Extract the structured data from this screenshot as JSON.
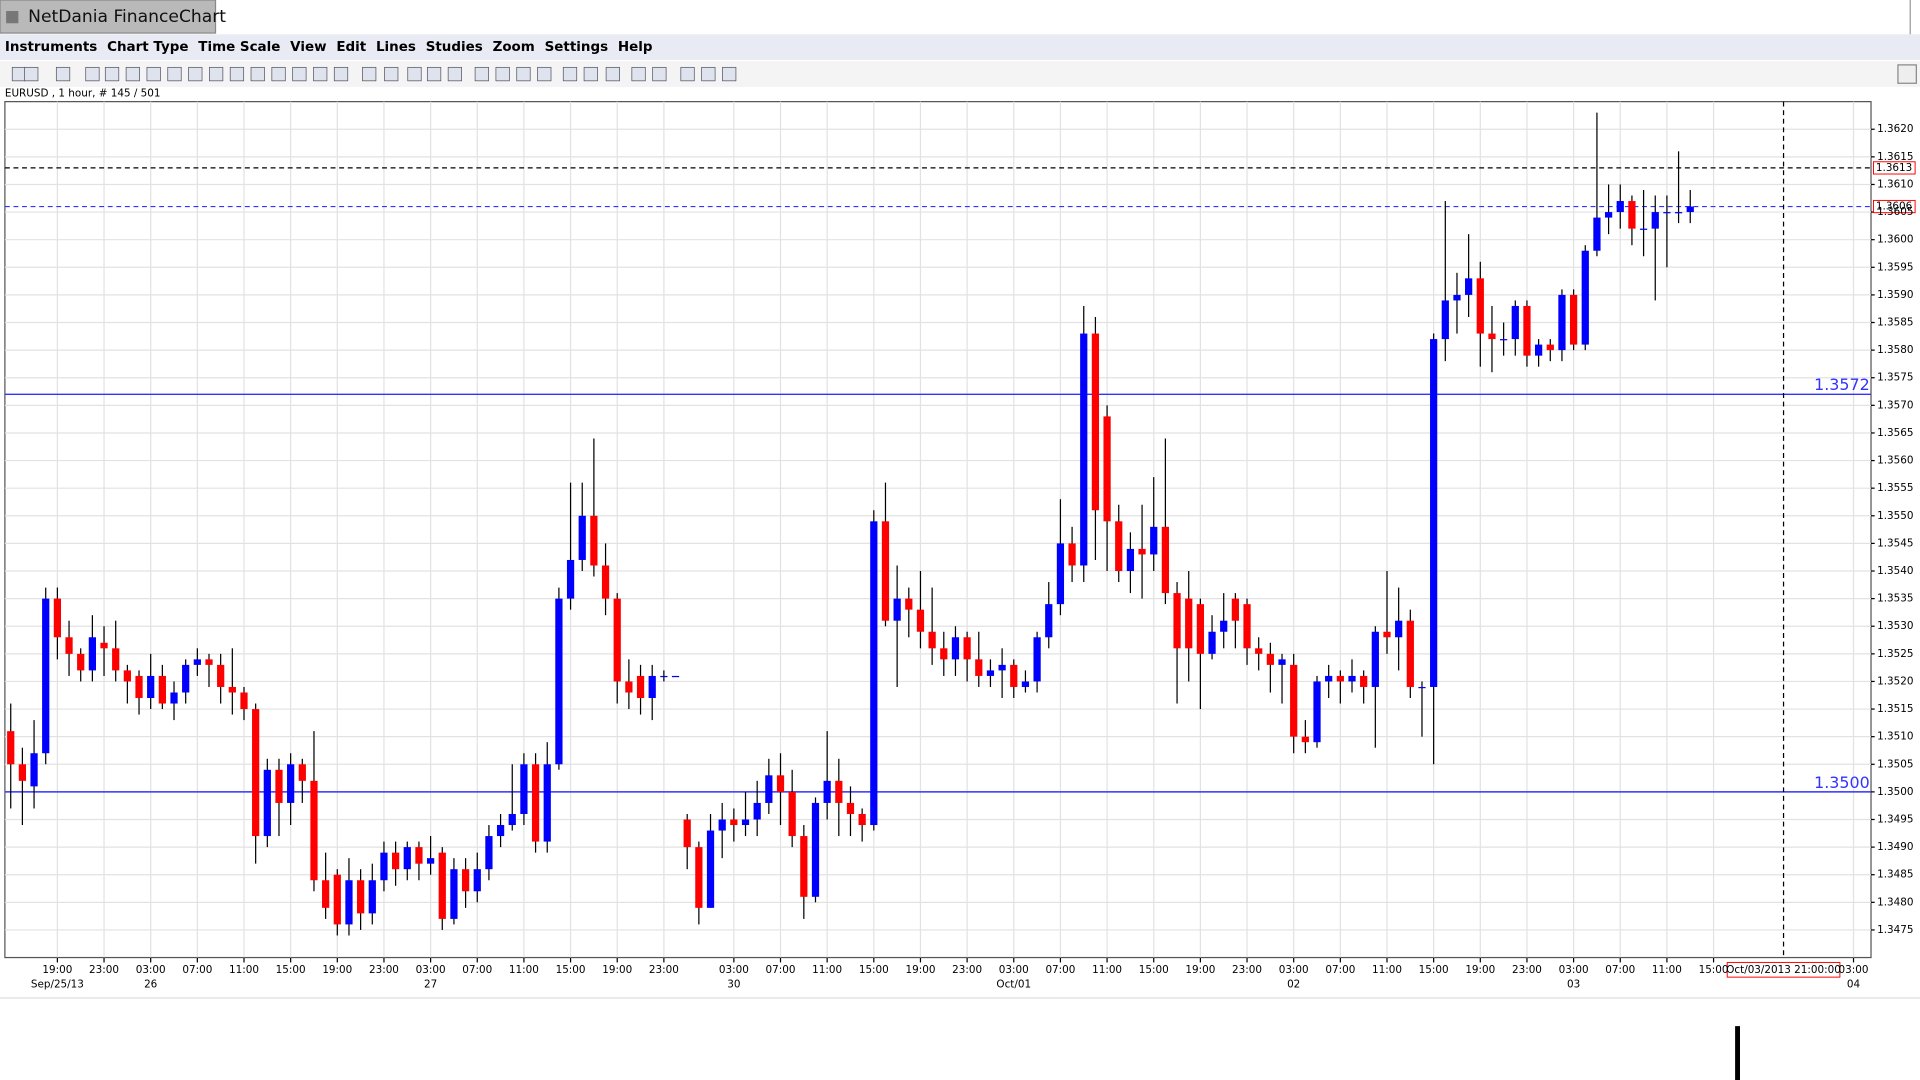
{
  "window_title": "NetDania FinanceChart",
  "menu": [
    "Instruments",
    "Chart Type",
    "Time Scale",
    "View",
    "Edit",
    "Lines",
    "Studies",
    "Zoom",
    "Settings",
    "Help"
  ],
  "chart_info": "EURUSD , 1 hour, # 145 / 501",
  "chart_data": {
    "type": "candlestick",
    "up_color": "#0000ff",
    "down_color": "#ff0000",
    "wick_color": "#000000",
    "grid": true,
    "ylim": [
      1.347,
      1.3625
    ],
    "yticks": [
      {
        "value": 1.3475,
        "label": "1.3475"
      },
      {
        "value": 1.348,
        "label": "1.3480"
      },
      {
        "value": 1.3485,
        "label": "1.3485"
      },
      {
        "value": 1.349,
        "label": "1.3490"
      },
      {
        "value": 1.3495,
        "label": "1.3495"
      },
      {
        "value": 1.35,
        "label": "1.3500"
      },
      {
        "value": 1.3505,
        "label": "1.3505"
      },
      {
        "value": 1.351,
        "label": "1.3510"
      },
      {
        "value": 1.3515,
        "label": "1.3515"
      },
      {
        "value": 1.352,
        "label": "1.3520"
      },
      {
        "value": 1.3525,
        "label": "1.3525"
      },
      {
        "value": 1.353,
        "label": "1.3530"
      },
      {
        "value": 1.3535,
        "label": "1.3535"
      },
      {
        "value": 1.354,
        "label": "1.3540"
      },
      {
        "value": 1.3545,
        "label": "1.3545"
      },
      {
        "value": 1.355,
        "label": "1.3550"
      },
      {
        "value": 1.3555,
        "label": "1.3555"
      },
      {
        "value": 1.356,
        "label": "1.3560"
      },
      {
        "value": 1.3565,
        "label": "1.3565"
      },
      {
        "value": 1.357,
        "label": "1.3570"
      },
      {
        "value": 1.3575,
        "label": "1.3575"
      },
      {
        "value": 1.358,
        "label": "1.3580"
      },
      {
        "value": 1.3585,
        "label": "1.3585"
      },
      {
        "value": 1.359,
        "label": "1.3590"
      },
      {
        "value": 1.3595,
        "label": "1.3595"
      },
      {
        "value": 1.36,
        "label": "1.3600"
      },
      {
        "value": 1.3605,
        "label": "1.3605"
      },
      {
        "value": 1.361,
        "label": "1.3610"
      },
      {
        "value": 1.3615,
        "label": "1.3615"
      },
      {
        "value": 1.362,
        "label": "1.3620"
      }
    ],
    "xlim": [
      -0.5,
      159.5
    ],
    "xticks": [
      {
        "value": 4,
        "label": "19:00"
      },
      {
        "value": 8,
        "label": "23:00"
      },
      {
        "value": 12,
        "label": "03:00"
      },
      {
        "value": 16,
        "label": "07:00"
      },
      {
        "value": 20,
        "label": "11:00"
      },
      {
        "value": 24,
        "label": "15:00"
      },
      {
        "value": 28,
        "label": "19:00"
      },
      {
        "value": 32,
        "label": "23:00"
      },
      {
        "value": 36,
        "label": "03:00"
      },
      {
        "value": 40,
        "label": "07:00"
      },
      {
        "value": 44,
        "label": "11:00"
      },
      {
        "value": 48,
        "label": "15:00"
      },
      {
        "value": 52,
        "label": "19:00"
      },
      {
        "value": 56,
        "label": "23:00"
      },
      {
        "value": 62,
        "label": "03:00"
      },
      {
        "value": 66,
        "label": "07:00"
      },
      {
        "value": 70,
        "label": "11:00"
      },
      {
        "value": 74,
        "label": "15:00"
      },
      {
        "value": 78,
        "label": "19:00"
      },
      {
        "value": 82,
        "label": "23:00"
      },
      {
        "value": 86,
        "label": "03:00"
      },
      {
        "value": 90,
        "label": "07:00"
      },
      {
        "value": 94,
        "label": "11:00"
      },
      {
        "value": 98,
        "label": "15:00"
      },
      {
        "value": 102,
        "label": "19:00"
      },
      {
        "value": 106,
        "label": "23:00"
      },
      {
        "value": 110,
        "label": "03:00"
      },
      {
        "value": 114,
        "label": "07:00"
      },
      {
        "value": 118,
        "label": "11:00"
      },
      {
        "value": 122,
        "label": "15:00"
      },
      {
        "value": 126,
        "label": "19:00"
      },
      {
        "value": 130,
        "label": "23:00"
      },
      {
        "value": 134,
        "label": "03:00"
      },
      {
        "value": 138,
        "label": "07:00"
      },
      {
        "value": 142,
        "label": "11:00"
      },
      {
        "value": 146,
        "label": "15:00"
      },
      {
        "value": 158,
        "label": "03:00"
      }
    ],
    "date_labels": [
      {
        "value": 4,
        "label": "Sep/25/13"
      },
      {
        "value": 12,
        "label": "26"
      },
      {
        "value": 36,
        "label": "27"
      },
      {
        "value": 62,
        "label": "30"
      },
      {
        "value": 86,
        "label": "Oct/01"
      },
      {
        "value": 110,
        "label": "02"
      },
      {
        "value": 134,
        "label": "03"
      },
      {
        "value": 158,
        "label": "04"
      }
    ],
    "lines": [
      {
        "value": 1.3572,
        "label": "1.3572",
        "color": "#3333ff",
        "style": "solid"
      },
      {
        "value": 1.35,
        "label": "1.3500",
        "color": "#3333ff",
        "style": "solid"
      }
    ],
    "price_markers": [
      {
        "value": 1.3613,
        "label": "1.3613",
        "color": "#000000"
      },
      {
        "value": 1.3606,
        "label": "1.3606",
        "color": "#3333ff"
      }
    ],
    "crosshair": {
      "value": 152,
      "label": "Oct/03/2013 21:00:00"
    },
    "open": [
      1.3511,
      1.3505,
      1.3501,
      1.3507,
      1.3535,
      1.3528,
      1.3525,
      1.3522,
      1.3527,
      1.3526,
      1.3522,
      1.3521,
      1.3517,
      1.3521,
      1.3516,
      1.3518,
      1.3523,
      1.3524,
      1.3523,
      1.3519,
      1.3518,
      1.3515,
      1.3492,
      1.3504,
      1.3498,
      1.3505,
      1.3502,
      1.3484,
      1.3485,
      1.3476,
      1.3484,
      1.3478,
      1.3484,
      1.3489,
      1.3486,
      1.349,
      1.3487,
      1.3489,
      1.3477,
      1.3486,
      1.3482,
      1.3486,
      1.3492,
      1.3494,
      1.3496,
      1.3505,
      1.3491,
      1.3505,
      1.3535,
      1.3542,
      1.355,
      1.3541,
      1.3535,
      1.352,
      1.3521,
      1.3517,
      1.3521,
      1.3521,
      1.3495,
      1.349,
      1.3479,
      1.3493,
      1.3495,
      1.3494,
      1.3495,
      1.3498,
      1.3503,
      1.35,
      1.3492,
      1.3481,
      1.3498,
      1.3502,
      1.3498,
      1.3496,
      1.3494,
      1.3549,
      1.3531,
      1.3535,
      1.3533,
      1.3529,
      1.3526,
      1.3524,
      1.3528,
      1.3524,
      1.3521,
      1.3522,
      1.3523,
      1.3519,
      1.352,
      1.3528,
      1.3534,
      1.3545,
      1.3541,
      1.3583,
      1.3568,
      1.3549,
      1.354,
      1.3544,
      1.3543,
      1.3548,
      1.3536,
      1.3535,
      1.3534,
      1.3525,
      1.3529,
      1.3535,
      1.3534,
      1.3526,
      1.3525,
      1.3523,
      1.3523,
      1.351,
      1.3509,
      1.352,
      1.3521,
      1.352,
      1.3521,
      1.3519,
      1.3529,
      1.3528,
      1.3531,
      1.3519,
      1.3519,
      1.3582,
      1.3589,
      1.359,
      1.3593,
      1.3583,
      1.3582,
      1.3582,
      1.3588,
      1.3579,
      1.3581,
      1.358,
      1.359,
      1.3581,
      1.3598,
      1.3604,
      1.3605,
      1.3607,
      1.3602,
      1.3602,
      1.3605,
      1.3605,
      1.3605
    ],
    "high": [
      1.3516,
      1.3508,
      1.3513,
      1.3537,
      1.3537,
      1.3531,
      1.3526,
      1.3532,
      1.353,
      1.3531,
      1.3523,
      1.3522,
      1.3525,
      1.3523,
      1.352,
      1.3524,
      1.3526,
      1.3525,
      1.3525,
      1.3526,
      1.3519,
      1.3516,
      1.3506,
      1.3506,
      1.3507,
      1.3506,
      1.3511,
      1.3489,
      1.3486,
      1.3488,
      1.3486,
      1.3487,
      1.3491,
      1.3491,
      1.3491,
      1.3491,
      1.3492,
      1.349,
      1.3488,
      1.3488,
      1.3489,
      1.3494,
      1.3496,
      1.3505,
      1.3507,
      1.3507,
      1.3509,
      1.3537,
      1.3556,
      1.3556,
      1.3564,
      1.3545,
      1.3536,
      1.3524,
      1.3523,
      1.3523,
      1.3522,
      1.3521,
      1.3496,
      1.3491,
      1.3496,
      1.3498,
      1.3497,
      1.35,
      1.3502,
      1.3506,
      1.3507,
      1.3504,
      1.3494,
      1.3499,
      1.3511,
      1.3506,
      1.3501,
      1.3497,
      1.3551,
      1.3556,
      1.3541,
      1.3537,
      1.354,
      1.3537,
      1.3529,
      1.353,
      1.3529,
      1.3529,
      1.3524,
      1.3526,
      1.3524,
      1.3522,
      1.3529,
      1.3538,
      1.3553,
      1.3548,
      1.3588,
      1.3586,
      1.357,
      1.3552,
      1.3547,
      1.3552,
      1.3557,
      1.3564,
      1.3538,
      1.354,
      1.3535,
      1.3532,
      1.3536,
      1.3536,
      1.3535,
      1.3528,
      1.3527,
      1.3525,
      1.3525,
      1.3513,
      1.3521,
      1.3523,
      1.3522,
      1.3524,
      1.3522,
      1.353,
      1.354,
      1.3537,
      1.3533,
      1.352,
      1.3583,
      1.3607,
      1.3594,
      1.3601,
      1.3596,
      1.3588,
      1.3585,
      1.3589,
      1.3589,
      1.3582,
      1.3582,
      1.3591,
      1.3591,
      1.3599,
      1.3623,
      1.361,
      1.361,
      1.3608,
      1.3609,
      1.3608,
      1.3608,
      1.3616,
      1.3609
    ],
    "low": [
      1.3497,
      1.3494,
      1.3497,
      1.3505,
      1.3524,
      1.3521,
      1.352,
      1.352,
      1.3521,
      1.352,
      1.3516,
      1.3514,
      1.3515,
      1.3515,
      1.3513,
      1.3516,
      1.3521,
      1.3519,
      1.3516,
      1.3514,
      1.3513,
      1.3487,
      1.349,
      1.3492,
      1.3494,
      1.3498,
      1.3482,
      1.3477,
      1.3474,
      1.3474,
      1.3475,
      1.3476,
      1.3482,
      1.3483,
      1.3484,
      1.3484,
      1.3485,
      1.3475,
      1.3476,
      1.3479,
      1.348,
      1.3484,
      1.349,
      1.3493,
      1.3494,
      1.3489,
      1.3489,
      1.3504,
      1.3533,
      1.354,
      1.3539,
      1.3532,
      1.3516,
      1.3515,
      1.3514,
      1.3513,
      1.352,
      1.3521,
      1.3486,
      1.3476,
      1.3479,
      1.3488,
      1.3491,
      1.3492,
      1.3492,
      1.3496,
      1.3494,
      1.349,
      1.3477,
      1.348,
      1.3495,
      1.3492,
      1.3492,
      1.3491,
      1.3493,
      1.353,
      1.3519,
      1.3528,
      1.3526,
      1.3523,
      1.3521,
      1.3521,
      1.352,
      1.3519,
      1.3519,
      1.3517,
      1.3517,
      1.3518,
      1.3518,
      1.3526,
      1.3532,
      1.3538,
      1.3538,
      1.3542,
      1.354,
      1.3538,
      1.3536,
      1.3535,
      1.354,
      1.3534,
      1.3516,
      1.352,
      1.3515,
      1.3524,
      1.3526,
      1.3526,
      1.3523,
      1.3522,
      1.3518,
      1.3516,
      1.3507,
      1.3507,
      1.3508,
      1.3517,
      1.3516,
      1.3518,
      1.3516,
      1.3508,
      1.3525,
      1.3522,
      1.3517,
      1.351,
      1.3505,
      1.3578,
      1.3583,
      1.3586,
      1.3577,
      1.3576,
      1.3579,
      1.3579,
      1.3577,
      1.3577,
      1.3578,
      1.3578,
      1.358,
      1.358,
      1.3597,
      1.3601,
      1.3602,
      1.3599,
      1.3597,
      1.3589,
      1.3595,
      1.3603,
      1.3603
    ],
    "close": [
      1.3505,
      1.3502,
      1.3507,
      1.3535,
      1.3528,
      1.3525,
      1.3522,
      1.3528,
      1.3526,
      1.3522,
      1.352,
      1.3517,
      1.3521,
      1.3516,
      1.3518,
      1.3523,
      1.3524,
      1.3523,
      1.3519,
      1.3518,
      1.3515,
      1.3492,
      1.3504,
      1.3498,
      1.3505,
      1.3502,
      1.3484,
      1.3479,
      1.3476,
      1.3484,
      1.3478,
      1.3484,
      1.3489,
      1.3486,
      1.349,
      1.3487,
      1.3488,
      1.3477,
      1.3486,
      1.3482,
      1.3486,
      1.3492,
      1.3494,
      1.3496,
      1.3505,
      1.3491,
      1.3505,
      1.3535,
      1.3542,
      1.355,
      1.3541,
      1.3535,
      1.352,
      1.3518,
      1.3517,
      1.3521,
      1.3521,
      1.3521,
      1.349,
      1.3479,
      1.3493,
      1.3495,
      1.3494,
      1.3495,
      1.3498,
      1.3503,
      1.35,
      1.3492,
      1.3481,
      1.3498,
      1.3502,
      1.3498,
      1.3496,
      1.3494,
      1.3549,
      1.3531,
      1.3535,
      1.3533,
      1.3529,
      1.3526,
      1.3524,
      1.3528,
      1.3524,
      1.3521,
      1.3522,
      1.3523,
      1.3519,
      1.352,
      1.3528,
      1.3534,
      1.3545,
      1.3541,
      1.3583,
      1.3551,
      1.3549,
      1.354,
      1.3544,
      1.3543,
      1.3548,
      1.3536,
      1.3526,
      1.3526,
      1.3525,
      1.3529,
      1.3531,
      1.3531,
      1.3526,
      1.3525,
      1.3523,
      1.3524,
      1.351,
      1.3509,
      1.352,
      1.3521,
      1.352,
      1.3521,
      1.3519,
      1.3529,
      1.3528,
      1.3531,
      1.3519,
      1.3519,
      1.3582,
      1.3589,
      1.359,
      1.3593,
      1.3583,
      1.3582,
      1.3582,
      1.3588,
      1.3579,
      1.3581,
      1.358,
      1.359,
      1.3581,
      1.3598,
      1.3604,
      1.3605,
      1.3607,
      1.3602,
      1.3602,
      1.3605,
      1.3605,
      1.3605,
      1.3606
    ]
  }
}
